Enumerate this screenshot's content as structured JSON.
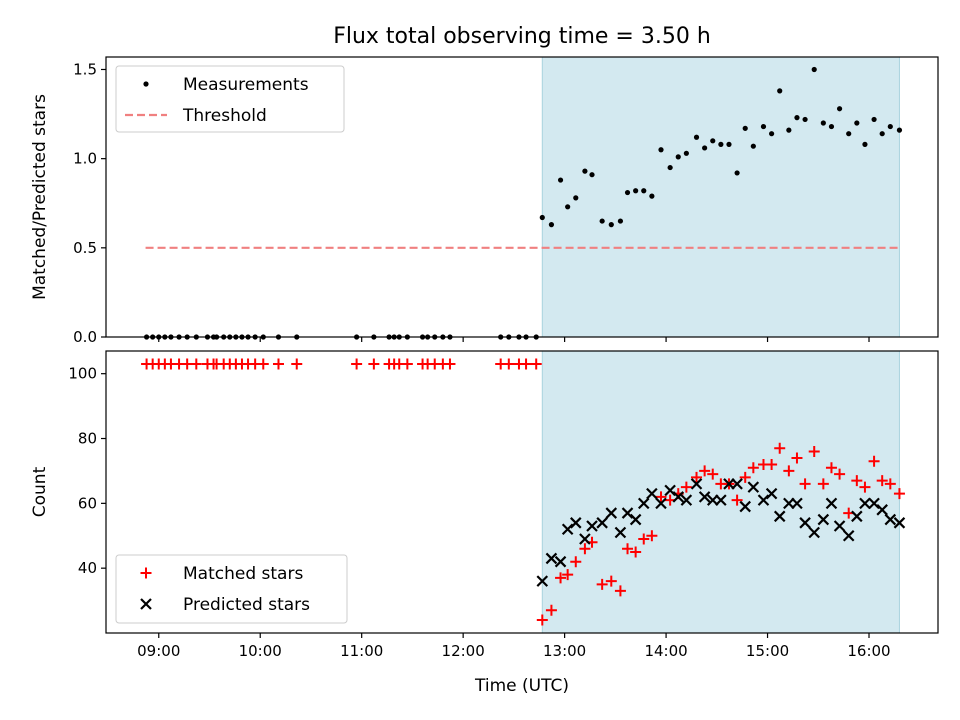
{
  "chart_data": [
    {
      "type": "scatter",
      "title": "Flux total observing time = 3.50 h",
      "ylabel": "Matched/Predicted stars",
      "xlabel": "",
      "x_unit": "hours (UTC)",
      "xlim": [
        8.48,
        16.68
      ],
      "ylim": [
        0,
        1.57
      ],
      "yticks": [
        0,
        0.5,
        1.0,
        1.5
      ],
      "ytick_labels": [
        "0.0",
        "0.5",
        "1.0",
        "1.5"
      ],
      "xticks": [
        9,
        10,
        11,
        12,
        13,
        14,
        15,
        16
      ],
      "shaded_region": {
        "x_start": 12.78,
        "x_end": 16.3,
        "color": "#d3e9f0"
      },
      "threshold": {
        "name": "Threshold",
        "y": 0.5,
        "x_start": 8.87,
        "x_end": 16.3,
        "color": "#f08080"
      },
      "legend": {
        "location": "upper-left",
        "entries": [
          "Measurements",
          "Threshold"
        ]
      },
      "series": [
        {
          "name": "Measurements",
          "marker": "dot",
          "color": "#000000",
          "x": [
            8.88,
            8.94,
            9.0,
            9.06,
            9.12,
            9.2,
            9.28,
            9.37,
            9.48,
            9.54,
            9.57,
            9.64,
            9.7,
            9.76,
            9.82,
            9.88,
            9.95,
            10.03,
            10.18,
            10.36,
            10.95,
            11.12,
            11.27,
            11.32,
            11.37,
            11.45,
            11.6,
            11.65,
            11.72,
            11.8,
            11.87,
            12.37,
            12.45,
            12.55,
            12.62,
            12.72,
            12.78,
            12.87,
            12.96,
            13.03,
            13.11,
            13.2,
            13.27,
            13.37,
            13.46,
            13.55,
            13.62,
            13.7,
            13.78,
            13.86,
            13.95,
            14.04,
            14.12,
            14.2,
            14.3,
            14.38,
            14.46,
            14.54,
            14.62,
            14.7,
            14.78,
            14.86,
            14.96,
            15.04,
            15.12,
            15.21,
            15.29,
            15.37,
            15.46,
            15.55,
            15.63,
            15.71,
            15.8,
            15.88,
            15.96,
            16.05,
            16.13,
            16.21,
            16.3
          ],
          "y": [
            0,
            0,
            0,
            0,
            0,
            0,
            0,
            0,
            0,
            0,
            0,
            0,
            0,
            0,
            0,
            0,
            0,
            0,
            0,
            0,
            0,
            0,
            0,
            0,
            0,
            0,
            0,
            0,
            0,
            0,
            0,
            0,
            0,
            0,
            0,
            0,
            0.67,
            0.63,
            0.88,
            0.73,
            0.78,
            0.93,
            0.91,
            0.65,
            0.63,
            0.65,
            0.81,
            0.82,
            0.82,
            0.79,
            1.05,
            0.95,
            1.01,
            1.03,
            1.12,
            1.06,
            1.1,
            1.08,
            1.08,
            0.92,
            1.17,
            1.07,
            1.18,
            1.14,
            1.38,
            1.16,
            1.23,
            1.22,
            1.5,
            1.2,
            1.18,
            1.28,
            1.14,
            1.2,
            1.08,
            1.22,
            1.14,
            1.18,
            1.16
          ]
        }
      ]
    },
    {
      "type": "scatter",
      "title": "",
      "ylabel": "Count",
      "xlabel": "Time (UTC)",
      "x_unit": "hours (UTC)",
      "xlim": [
        8.48,
        16.68
      ],
      "ylim": [
        20,
        107
      ],
      "yticks": [
        40,
        60,
        80,
        100
      ],
      "ytick_labels": [
        "40",
        "60",
        "80",
        "100"
      ],
      "xticks": [
        9,
        10,
        11,
        12,
        13,
        14,
        15,
        16
      ],
      "xtick_labels": [
        "09:00",
        "10:00",
        "11:00",
        "12:00",
        "13:00",
        "14:00",
        "15:00",
        "16:00"
      ],
      "shaded_region": {
        "x_start": 12.78,
        "x_end": 16.3,
        "color": "#d3e9f0"
      },
      "legend": {
        "location": "lower-left",
        "entries": [
          "Matched stars",
          "Predicted stars"
        ]
      },
      "series": [
        {
          "name": "Matched stars",
          "marker": "plus",
          "color": "#ff0000",
          "x": [
            8.88,
            8.94,
            9.0,
            9.06,
            9.12,
            9.2,
            9.28,
            9.37,
            9.48,
            9.54,
            9.57,
            9.64,
            9.7,
            9.76,
            9.82,
            9.88,
            9.95,
            10.03,
            10.18,
            10.36,
            10.95,
            11.12,
            11.27,
            11.32,
            11.37,
            11.45,
            11.6,
            11.65,
            11.72,
            11.8,
            11.87,
            12.37,
            12.45,
            12.55,
            12.62,
            12.72,
            12.78,
            12.87,
            12.96,
            13.03,
            13.11,
            13.2,
            13.27,
            13.37,
            13.46,
            13.55,
            13.62,
            13.7,
            13.78,
            13.86,
            13.95,
            14.04,
            14.12,
            14.2,
            14.3,
            14.38,
            14.46,
            14.54,
            14.62,
            14.7,
            14.78,
            14.86,
            14.96,
            15.04,
            15.12,
            15.21,
            15.29,
            15.37,
            15.46,
            15.55,
            15.63,
            15.71,
            15.8,
            15.88,
            15.96,
            16.05,
            16.13,
            16.21,
            16.3
          ],
          "y": [
            103,
            103,
            103,
            103,
            103,
            103,
            103,
            103,
            103,
            103,
            103,
            103,
            103,
            103,
            103,
            103,
            103,
            103,
            103,
            103,
            103,
            103,
            103,
            103,
            103,
            103,
            103,
            103,
            103,
            103,
            103,
            103,
            103,
            103,
            103,
            103,
            24,
            27,
            37,
            38,
            42,
            46,
            48,
            35,
            36,
            33,
            46,
            45,
            49,
            50,
            62,
            61,
            63,
            65,
            68,
            70,
            69,
            66,
            66,
            61,
            68,
            71,
            72,
            72,
            77,
            70,
            74,
            66,
            76,
            66,
            71,
            69,
            57,
            67,
            65,
            73,
            67,
            66,
            63
          ]
        },
        {
          "name": "Predicted stars",
          "marker": "x",
          "color": "#000000",
          "x": [
            12.78,
            12.87,
            12.96,
            13.03,
            13.11,
            13.2,
            13.27,
            13.37,
            13.46,
            13.55,
            13.62,
            13.7,
            13.78,
            13.86,
            13.95,
            14.04,
            14.12,
            14.2,
            14.3,
            14.38,
            14.46,
            14.54,
            14.62,
            14.7,
            14.78,
            14.86,
            14.96,
            15.04,
            15.12,
            15.21,
            15.29,
            15.37,
            15.46,
            15.55,
            15.63,
            15.71,
            15.8,
            15.88,
            15.96,
            16.05,
            16.13,
            16.21,
            16.3
          ],
          "y": [
            36,
            43,
            42,
            52,
            54,
            49,
            53,
            54,
            57,
            51,
            57,
            55,
            60,
            63,
            60,
            64,
            62,
            61,
            66,
            62,
            61,
            61,
            66,
            66,
            59,
            65,
            61,
            63,
            56,
            60,
            60,
            54,
            51,
            55,
            60,
            53,
            50,
            56,
            60,
            60,
            58,
            55,
            54
          ]
        }
      ]
    }
  ]
}
